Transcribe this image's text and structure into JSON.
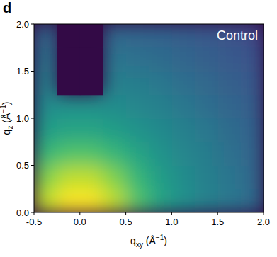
{
  "chart_data": {
    "type": "heatmap",
    "panel_label": "d",
    "annotation": "Control",
    "xlabel": {
      "text": "q",
      "sub": "xy",
      "rest": " (Å",
      "sup": "−1",
      "end": ")"
    },
    "ylabel": {
      "text": "q",
      "sub": "z",
      "rest": " (Å",
      "sup": "−1",
      "end": ")"
    },
    "x": [
      -0.375,
      -0.125,
      0.125,
      0.375,
      0.625,
      0.875,
      1.125,
      1.375,
      1.625,
      1.875
    ],
    "y": [
      0.125,
      0.375,
      0.625,
      0.875,
      1.125,
      1.375,
      1.625,
      1.875
    ],
    "values": [
      [
        90,
        100,
        100,
        90,
        72,
        58,
        50,
        44,
        40,
        35
      ],
      [
        80,
        90,
        90,
        80,
        66,
        55,
        48,
        43,
        39,
        34
      ],
      [
        66,
        72,
        72,
        66,
        58,
        51,
        46,
        42,
        37,
        33
      ],
      [
        55,
        58,
        58,
        55,
        51,
        47,
        43,
        40,
        35,
        32
      ],
      [
        48,
        50,
        50,
        48,
        46,
        43,
        40,
        36,
        33,
        30
      ],
      [
        43,
        null,
        null,
        43,
        42,
        40,
        36,
        34,
        31,
        28
      ],
      [
        39,
        null,
        null,
        39,
        37,
        35,
        33,
        31,
        28,
        26
      ],
      [
        34,
        null,
        null,
        34,
        33,
        32,
        30,
        28,
        26,
        23
      ]
    ],
    "zlim": [
      0,
      100
    ],
    "xlim": [
      -0.5,
      2.0
    ],
    "ylim": [
      0,
      2.0
    ],
    "xticks": [
      -0.5,
      {
        "value": 0,
        "label": "0.0"
      },
      0.5,
      {
        "value": 1,
        "label": "1.0"
      },
      1.5,
      {
        "value": 2,
        "label": "2.0"
      }
    ],
    "yticks": [
      {
        "value": 0,
        "label": "0.0"
      },
      0.5,
      {
        "value": 1,
        "label": "1.0"
      },
      1.5,
      {
        "value": 2,
        "label": "2.0"
      }
    ]
  }
}
